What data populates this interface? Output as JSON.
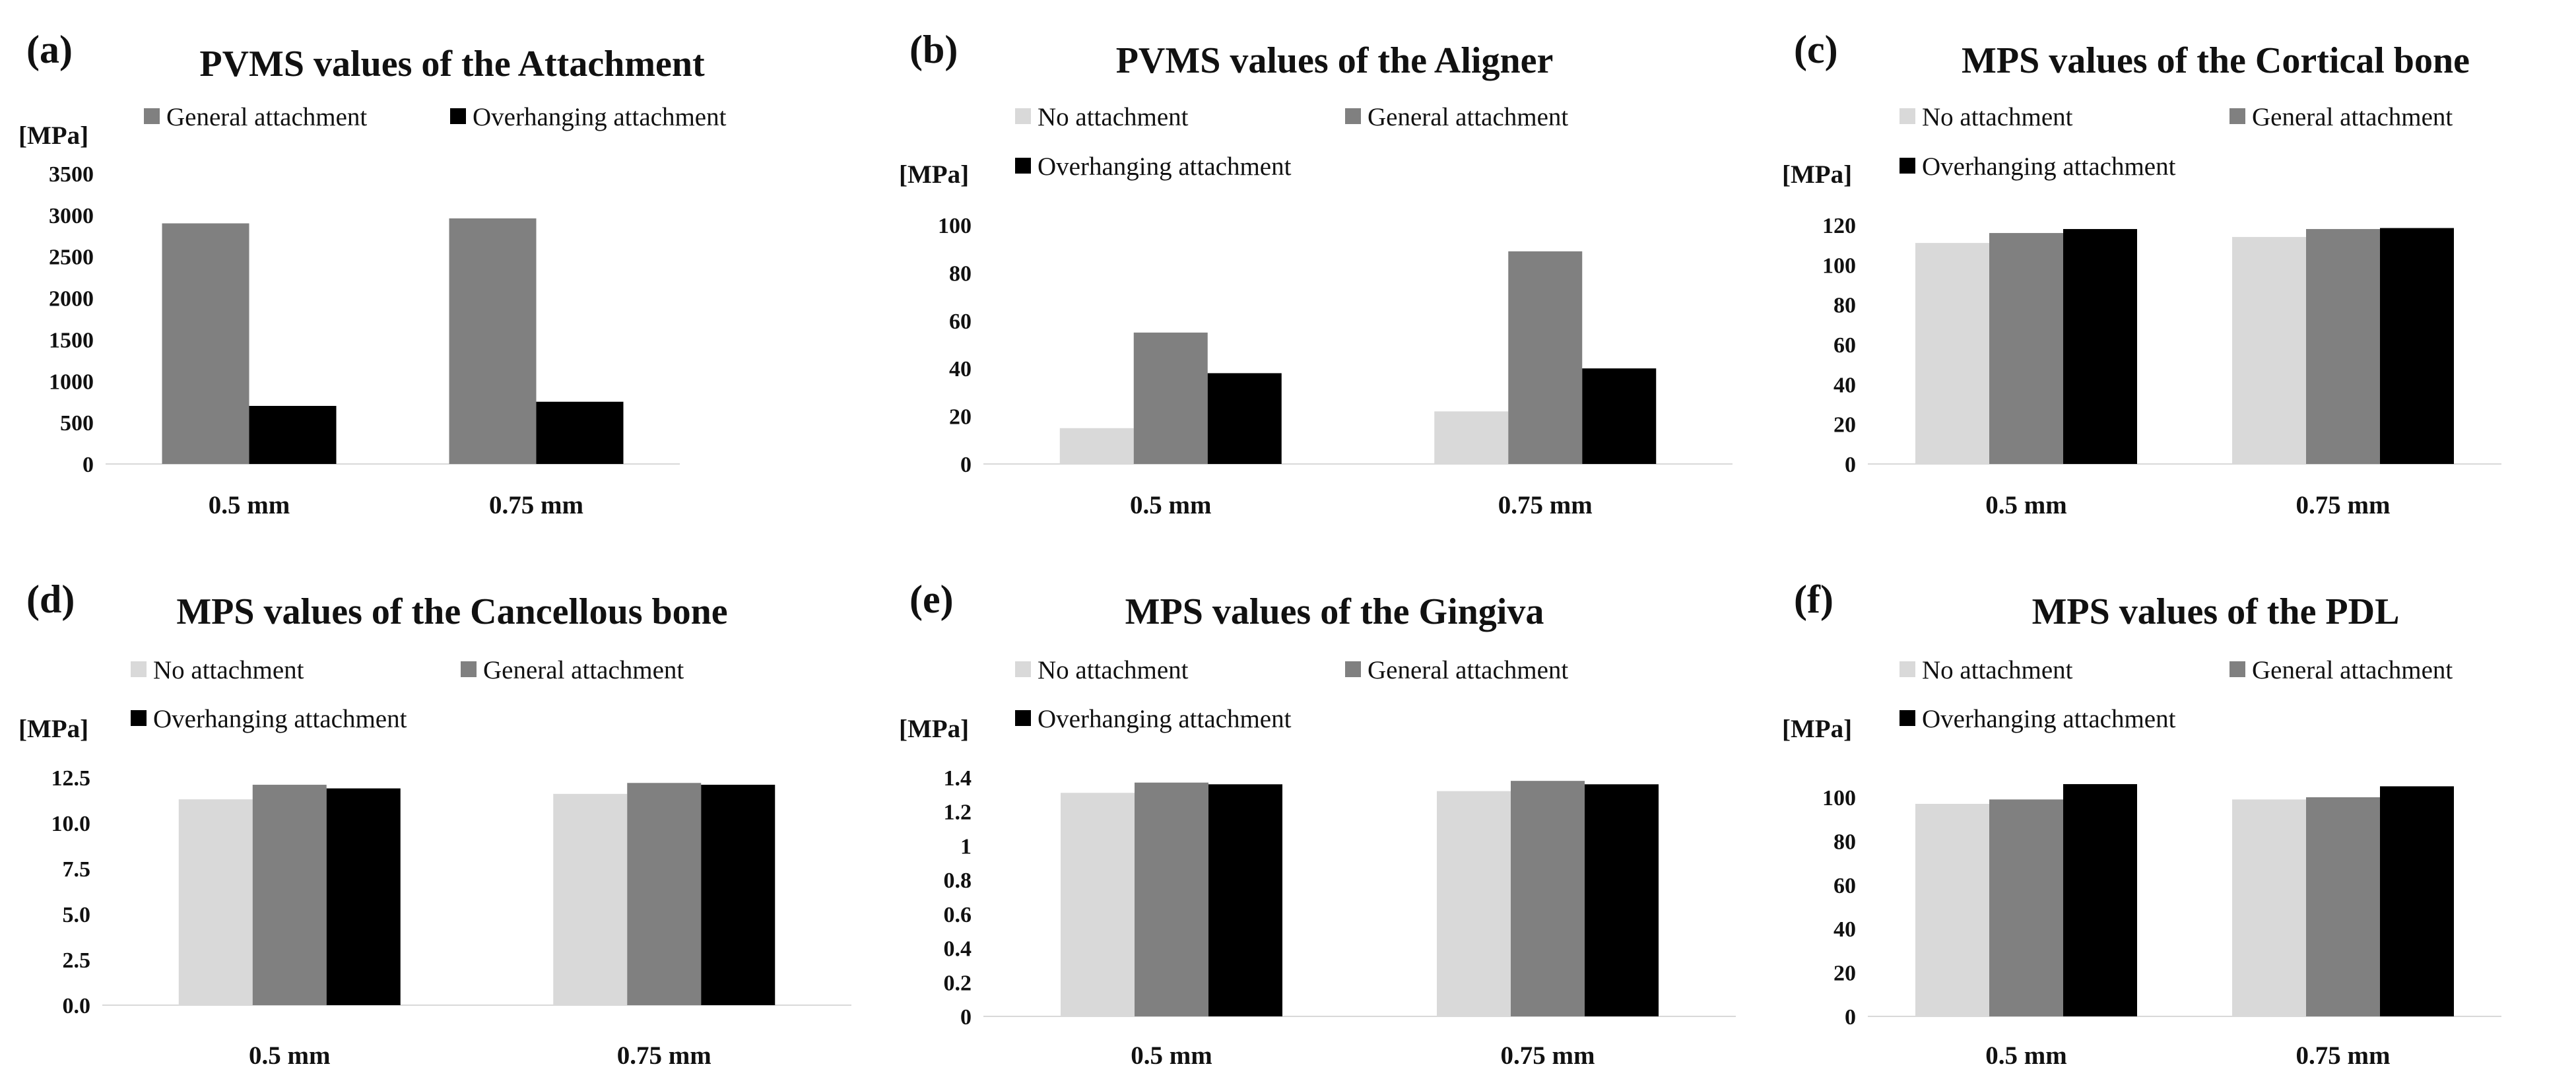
{
  "figure_title": "",
  "colors": {
    "No attachment": "#d9d9d9",
    "General attachment": "#808080",
    "Overhanging attachment": "#000000"
  },
  "chart_data": [
    {
      "panel": "(a)",
      "type": "bar",
      "title": "PVMS values of the Attachment",
      "ylabel": "[MPa]",
      "categories": [
        "0.5 mm",
        "0.75 mm"
      ],
      "ylim": [
        0,
        3500
      ],
      "yticks": [
        "0",
        "500",
        "1000",
        "1500",
        "2000",
        "2500",
        "3000",
        "3500"
      ],
      "series": [
        {
          "name": "General attachment",
          "values": [
            2900,
            2960
          ]
        },
        {
          "name": "Overhanging attachment",
          "values": [
            700,
            750
          ]
        }
      ]
    },
    {
      "panel": "(b)",
      "type": "bar",
      "title": "PVMS values of the Aligner",
      "ylabel": "[MPa]",
      "categories": [
        "0.5 mm",
        "0.75 mm"
      ],
      "ylim": [
        0,
        100
      ],
      "yticks": [
        "0",
        "20",
        "40",
        "60",
        "80",
        "100"
      ],
      "series": [
        {
          "name": "No attachment",
          "values": [
            15,
            22
          ]
        },
        {
          "name": "General attachment",
          "values": [
            55,
            89
          ]
        },
        {
          "name": "Overhanging attachment",
          "values": [
            38,
            40
          ]
        }
      ]
    },
    {
      "panel": "(c)",
      "type": "bar",
      "title": "MPS values of the Cortical bone",
      "ylabel": "[MPa]",
      "categories": [
        "0.5 mm",
        "0.75 mm"
      ],
      "ylim": [
        0,
        120
      ],
      "yticks": [
        "0",
        "20",
        "40",
        "60",
        "80",
        "100",
        "120"
      ],
      "series": [
        {
          "name": "No attachment",
          "values": [
            111,
            114
          ]
        },
        {
          "name": "General attachment",
          "values": [
            116,
            118
          ]
        },
        {
          "name": "Overhanging attachment",
          "values": [
            118,
            118.5
          ]
        }
      ]
    },
    {
      "panel": "(d)",
      "type": "bar",
      "title": "MPS values of the Cancellous bone",
      "ylabel": "[MPa]",
      "categories": [
        "0.5 mm",
        "0.75 mm"
      ],
      "ylim": [
        0,
        12.5
      ],
      "yticks": [
        "0.0",
        "2.5",
        "5.0",
        "7.5",
        "10.0",
        "12.5"
      ],
      "series": [
        {
          "name": "No attachment",
          "values": [
            11.3,
            11.6
          ]
        },
        {
          "name": "General attachment",
          "values": [
            12.1,
            12.2
          ]
        },
        {
          "name": "Overhanging attachment",
          "values": [
            11.9,
            12.1
          ]
        }
      ]
    },
    {
      "panel": "(e)",
      "type": "bar",
      "title": "MPS values of the Gingiva",
      "ylabel": "[MPa]",
      "categories": [
        "0.5 mm",
        "0.75 mm"
      ],
      "ylim": [
        0,
        1.4
      ],
      "yticks": [
        "0",
        "0.2",
        "0.4",
        "0.6",
        "0.8",
        "1",
        "1.2",
        "1.4"
      ],
      "series": [
        {
          "name": "No attachment",
          "values": [
            1.31,
            1.32
          ]
        },
        {
          "name": "General attachment",
          "values": [
            1.37,
            1.38
          ]
        },
        {
          "name": "Overhanging attachment",
          "values": [
            1.36,
            1.36
          ]
        }
      ]
    },
    {
      "panel": "(f)",
      "type": "bar",
      "title": "MPS values of the PDL",
      "ylabel": "[MPa]",
      "categories": [
        "0.5 mm",
        "0.75 mm"
      ],
      "ylim": [
        0,
        100
      ],
      "yticks": [
        "0",
        "20",
        "40",
        "60",
        "80",
        "100"
      ],
      "series": [
        {
          "name": "No attachment",
          "values": [
            97,
            99
          ]
        },
        {
          "name": "General attachment",
          "values": [
            99,
            100
          ]
        },
        {
          "name": "Overhanging attachment",
          "values": [
            106,
            105
          ]
        }
      ]
    }
  ]
}
